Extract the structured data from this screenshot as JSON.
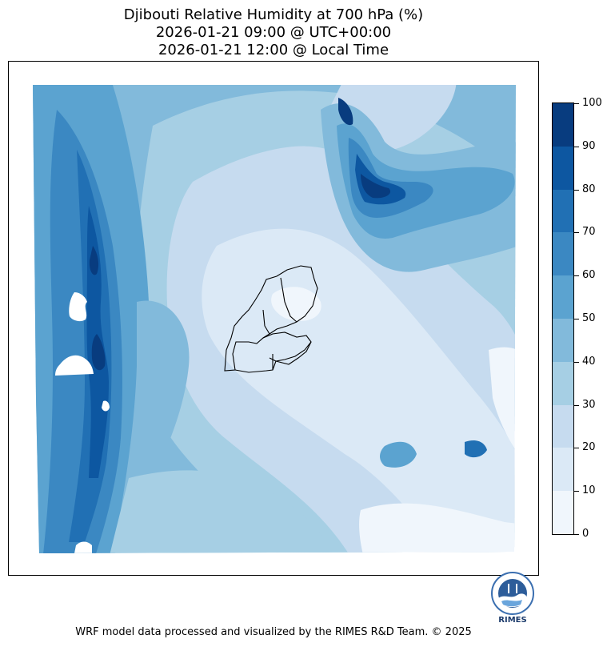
{
  "title": {
    "line1": "Djibouti Relative Humidity at 700 hPa (%)",
    "line2": "2026-01-21 09:00 @ UTC+00:00",
    "line3": "2026-01-21 12:00 @ Local Time"
  },
  "colorbar": {
    "ticks": [
      "0",
      "10",
      "20",
      "30",
      "40",
      "50",
      "60",
      "70",
      "80",
      "90",
      "100"
    ],
    "range": [
      0,
      100
    ],
    "colors": [
      "#f0f6fc",
      "#dbe9f6",
      "#c6dbef",
      "#a6cfe4",
      "#82badb",
      "#5ba3d0",
      "#3b88c2",
      "#2170b4",
      "#0d57a1",
      "#083c7f"
    ]
  },
  "logo": {
    "text": "RIMES"
  },
  "footer": "WRF model data processed and visualized by the RIMES R&D Team. © 2025"
}
